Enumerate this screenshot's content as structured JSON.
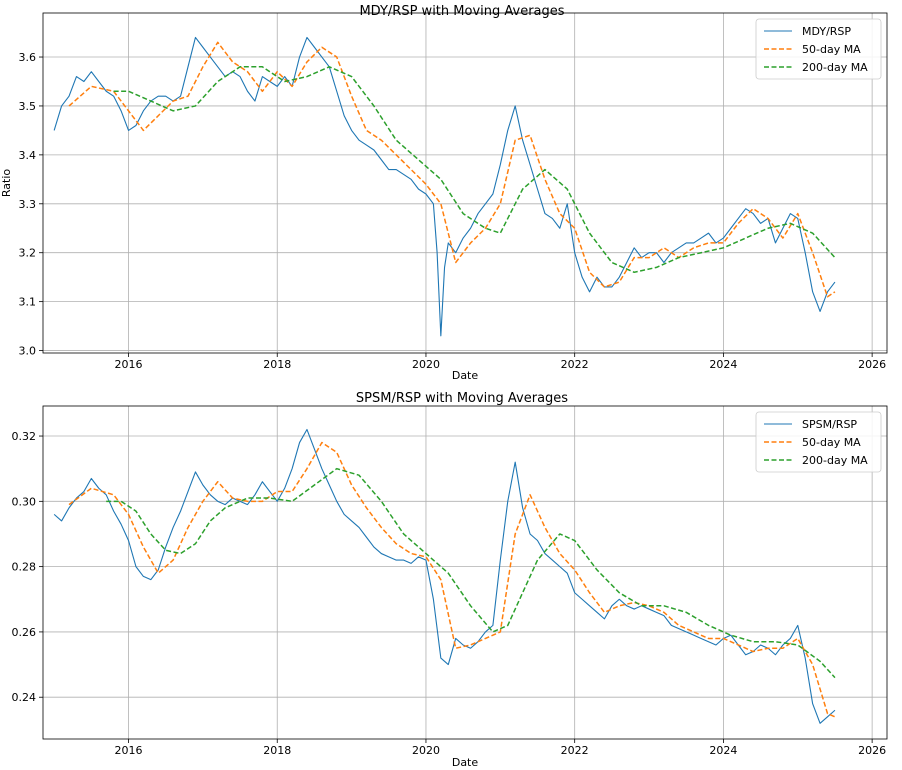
{
  "chart_data": [
    {
      "type": "line",
      "title": "MDY/RSP with Moving Averages",
      "xlabel": "Date",
      "ylabel": "Ratio",
      "xlim": [
        2014.85,
        2026.2
      ],
      "ylim": [
        2.995,
        3.69
      ],
      "x_ticks": [
        2016,
        2018,
        2020,
        2022,
        2024,
        2026
      ],
      "y_ticks": [
        3.0,
        3.1,
        3.2,
        3.3,
        3.4,
        3.5,
        3.6
      ],
      "y_tick_labels": [
        "3.0",
        "3.1",
        "3.2",
        "3.3",
        "3.4",
        "3.5",
        "3.6"
      ],
      "grid": true,
      "legend_position": "top-right",
      "series": [
        {
          "name": "MDY/RSP",
          "style": "solid",
          "color": "#1f77b4",
          "x": [
            2015.0,
            2015.1,
            2015.2,
            2015.3,
            2015.4,
            2015.5,
            2015.6,
            2015.7,
            2015.8,
            2015.9,
            2016.0,
            2016.1,
            2016.2,
            2016.3,
            2016.4,
            2016.5,
            2016.6,
            2016.7,
            2016.8,
            2016.9,
            2017.0,
            2017.1,
            2017.2,
            2017.3,
            2017.4,
            2017.5,
            2017.6,
            2017.7,
            2017.8,
            2017.9,
            2018.0,
            2018.1,
            2018.2,
            2018.3,
            2018.4,
            2018.5,
            2018.6,
            2018.7,
            2018.8,
            2018.9,
            2019.0,
            2019.1,
            2019.2,
            2019.3,
            2019.4,
            2019.5,
            2019.6,
            2019.7,
            2019.8,
            2019.9,
            2020.0,
            2020.1,
            2020.15,
            2020.2,
            2020.25,
            2020.3,
            2020.4,
            2020.5,
            2020.6,
            2020.7,
            2020.8,
            2020.9,
            2021.0,
            2021.1,
            2021.2,
            2021.3,
            2021.4,
            2021.5,
            2021.6,
            2021.7,
            2021.8,
            2021.9,
            2022.0,
            2022.1,
            2022.2,
            2022.3,
            2022.4,
            2022.5,
            2022.6,
            2022.7,
            2022.8,
            2022.9,
            2023.0,
            2023.1,
            2023.2,
            2023.3,
            2023.4,
            2023.5,
            2023.6,
            2023.7,
            2023.8,
            2023.9,
            2024.0,
            2024.1,
            2024.2,
            2024.3,
            2024.4,
            2024.5,
            2024.6,
            2024.7,
            2024.8,
            2024.9,
            2025.0,
            2025.1,
            2025.2,
            2025.3,
            2025.4,
            2025.5
          ],
          "y": [
            3.45,
            3.5,
            3.52,
            3.56,
            3.55,
            3.57,
            3.55,
            3.53,
            3.52,
            3.49,
            3.45,
            3.46,
            3.49,
            3.51,
            3.52,
            3.52,
            3.51,
            3.52,
            3.58,
            3.64,
            3.62,
            3.6,
            3.58,
            3.56,
            3.57,
            3.56,
            3.53,
            3.51,
            3.56,
            3.55,
            3.54,
            3.56,
            3.54,
            3.6,
            3.64,
            3.62,
            3.6,
            3.58,
            3.53,
            3.48,
            3.45,
            3.43,
            3.42,
            3.41,
            3.39,
            3.37,
            3.37,
            3.36,
            3.35,
            3.33,
            3.32,
            3.3,
            3.2,
            3.03,
            3.17,
            3.22,
            3.2,
            3.23,
            3.25,
            3.28,
            3.3,
            3.32,
            3.38,
            3.45,
            3.5,
            3.43,
            3.38,
            3.33,
            3.28,
            3.27,
            3.25,
            3.3,
            3.2,
            3.15,
            3.12,
            3.15,
            3.13,
            3.13,
            3.15,
            3.18,
            3.21,
            3.19,
            3.2,
            3.2,
            3.18,
            3.2,
            3.21,
            3.22,
            3.22,
            3.23,
            3.24,
            3.22,
            3.23,
            3.25,
            3.27,
            3.29,
            3.28,
            3.26,
            3.27,
            3.22,
            3.25,
            3.28,
            3.27,
            3.2,
            3.12,
            3.08,
            3.12,
            3.14
          ]
        },
        {
          "name": "50-day MA",
          "style": "dashed",
          "color": "#ff7f0e",
          "x": [
            2015.2,
            2015.5,
            2015.8,
            2016.0,
            2016.2,
            2016.4,
            2016.6,
            2016.8,
            2017.0,
            2017.2,
            2017.4,
            2017.6,
            2017.8,
            2018.0,
            2018.2,
            2018.4,
            2018.6,
            2018.8,
            2019.0,
            2019.2,
            2019.4,
            2019.6,
            2019.8,
            2020.0,
            2020.2,
            2020.4,
            2020.6,
            2020.8,
            2021.0,
            2021.2,
            2021.4,
            2021.6,
            2021.8,
            2022.0,
            2022.2,
            2022.4,
            2022.6,
            2022.8,
            2023.0,
            2023.2,
            2023.4,
            2023.6,
            2023.8,
            2024.0,
            2024.2,
            2024.4,
            2024.6,
            2024.8,
            2025.0,
            2025.2,
            2025.4,
            2025.5
          ],
          "y": [
            3.5,
            3.54,
            3.53,
            3.49,
            3.45,
            3.48,
            3.51,
            3.52,
            3.58,
            3.63,
            3.59,
            3.57,
            3.53,
            3.57,
            3.54,
            3.59,
            3.62,
            3.6,
            3.52,
            3.45,
            3.43,
            3.4,
            3.37,
            3.34,
            3.3,
            3.18,
            3.22,
            3.25,
            3.3,
            3.43,
            3.44,
            3.35,
            3.28,
            3.25,
            3.16,
            3.13,
            3.14,
            3.19,
            3.19,
            3.21,
            3.19,
            3.21,
            3.22,
            3.22,
            3.26,
            3.29,
            3.27,
            3.23,
            3.28,
            3.2,
            3.11,
            3.12
          ]
        },
        {
          "name": "200-day MA",
          "style": "dashed",
          "color": "#2ca02c",
          "x": [
            2015.8,
            2016.0,
            2016.3,
            2016.6,
            2016.9,
            2017.2,
            2017.5,
            2017.8,
            2018.1,
            2018.4,
            2018.7,
            2019.0,
            2019.3,
            2019.6,
            2019.9,
            2020.2,
            2020.5,
            2020.8,
            2021.0,
            2021.3,
            2021.6,
            2021.9,
            2022.2,
            2022.5,
            2022.8,
            2023.1,
            2023.4,
            2023.7,
            2024.0,
            2024.3,
            2024.6,
            2024.9,
            2025.2,
            2025.5
          ],
          "y": [
            3.53,
            3.53,
            3.51,
            3.49,
            3.5,
            3.55,
            3.58,
            3.58,
            3.55,
            3.56,
            3.58,
            3.56,
            3.5,
            3.43,
            3.39,
            3.35,
            3.28,
            3.25,
            3.24,
            3.33,
            3.37,
            3.33,
            3.24,
            3.18,
            3.16,
            3.17,
            3.19,
            3.2,
            3.21,
            3.23,
            3.25,
            3.26,
            3.24,
            3.19
          ]
        }
      ]
    },
    {
      "type": "line",
      "title": "SPSM/RSP with Moving Averages",
      "xlabel": "Date",
      "ylabel": "Ratio",
      "xlim": [
        2014.85,
        2026.2
      ],
      "ylim": [
        0.2272,
        0.3292
      ],
      "x_ticks": [
        2016,
        2018,
        2020,
        2022,
        2024,
        2026
      ],
      "y_ticks": [
        0.24,
        0.26,
        0.28,
        0.3,
        0.32
      ],
      "y_tick_labels": [
        "0.24",
        "0.26",
        "0.28",
        "0.30",
        "0.32"
      ],
      "grid": true,
      "legend_position": "top-right",
      "series": [
        {
          "name": "SPSM/RSP",
          "style": "solid",
          "color": "#1f77b4",
          "x": [
            2015.0,
            2015.1,
            2015.2,
            2015.3,
            2015.4,
            2015.5,
            2015.6,
            2015.7,
            2015.8,
            2015.9,
            2016.0,
            2016.1,
            2016.2,
            2016.3,
            2016.4,
            2016.5,
            2016.6,
            2016.7,
            2016.8,
            2016.9,
            2017.0,
            2017.1,
            2017.2,
            2017.3,
            2017.4,
            2017.5,
            2017.6,
            2017.7,
            2017.8,
            2017.9,
            2018.0,
            2018.1,
            2018.2,
            2018.3,
            2018.4,
            2018.5,
            2018.6,
            2018.7,
            2018.8,
            2018.9,
            2019.0,
            2019.1,
            2019.2,
            2019.3,
            2019.4,
            2019.5,
            2019.6,
            2019.7,
            2019.8,
            2019.9,
            2020.0,
            2020.1,
            2020.2,
            2020.3,
            2020.4,
            2020.5,
            2020.6,
            2020.7,
            2020.8,
            2020.9,
            2021.0,
            2021.1,
            2021.2,
            2021.3,
            2021.4,
            2021.5,
            2021.6,
            2021.7,
            2021.8,
            2021.9,
            2022.0,
            2022.1,
            2022.2,
            2022.3,
            2022.4,
            2022.5,
            2022.6,
            2022.7,
            2022.8,
            2022.9,
            2023.0,
            2023.1,
            2023.2,
            2023.3,
            2023.4,
            2023.5,
            2023.6,
            2023.7,
            2023.8,
            2023.9,
            2024.0,
            2024.1,
            2024.2,
            2024.3,
            2024.4,
            2024.5,
            2024.6,
            2024.7,
            2024.8,
            2024.9,
            2025.0,
            2025.1,
            2025.2,
            2025.3,
            2025.4,
            2025.5
          ],
          "y": [
            0.296,
            0.294,
            0.298,
            0.301,
            0.303,
            0.307,
            0.304,
            0.302,
            0.297,
            0.293,
            0.288,
            0.28,
            0.277,
            0.276,
            0.279,
            0.286,
            0.292,
            0.297,
            0.303,
            0.309,
            0.305,
            0.302,
            0.3,
            0.299,
            0.301,
            0.3,
            0.299,
            0.302,
            0.306,
            0.303,
            0.3,
            0.304,
            0.31,
            0.318,
            0.322,
            0.316,
            0.31,
            0.305,
            0.3,
            0.296,
            0.294,
            0.292,
            0.289,
            0.286,
            0.284,
            0.283,
            0.282,
            0.282,
            0.281,
            0.283,
            0.282,
            0.27,
            0.252,
            0.25,
            0.258,
            0.256,
            0.255,
            0.257,
            0.26,
            0.262,
            0.282,
            0.3,
            0.312,
            0.298,
            0.29,
            0.288,
            0.284,
            0.282,
            0.28,
            0.278,
            0.272,
            0.27,
            0.268,
            0.266,
            0.264,
            0.268,
            0.27,
            0.268,
            0.267,
            0.268,
            0.267,
            0.266,
            0.265,
            0.262,
            0.261,
            0.26,
            0.259,
            0.258,
            0.257,
            0.256,
            0.258,
            0.259,
            0.256,
            0.253,
            0.254,
            0.256,
            0.255,
            0.253,
            0.256,
            0.258,
            0.262,
            0.252,
            0.238,
            0.232,
            0.234,
            0.236
          ]
        },
        {
          "name": "50-day MA",
          "style": "dashed",
          "color": "#ff7f0e",
          "x": [
            2015.2,
            2015.5,
            2015.8,
            2016.0,
            2016.2,
            2016.4,
            2016.6,
            2016.8,
            2017.0,
            2017.2,
            2017.4,
            2017.6,
            2017.8,
            2018.0,
            2018.2,
            2018.4,
            2018.6,
            2018.8,
            2019.0,
            2019.2,
            2019.4,
            2019.6,
            2019.8,
            2020.0,
            2020.2,
            2020.4,
            2020.6,
            2020.8,
            2021.0,
            2021.2,
            2021.4,
            2021.6,
            2021.8,
            2022.0,
            2022.2,
            2022.4,
            2022.6,
            2022.8,
            2023.0,
            2023.2,
            2023.4,
            2023.6,
            2023.8,
            2024.0,
            2024.2,
            2024.4,
            2024.6,
            2024.8,
            2025.0,
            2025.2,
            2025.4,
            2025.5
          ],
          "y": [
            0.299,
            0.304,
            0.302,
            0.296,
            0.286,
            0.278,
            0.282,
            0.292,
            0.3,
            0.306,
            0.301,
            0.3,
            0.3,
            0.303,
            0.303,
            0.31,
            0.318,
            0.315,
            0.305,
            0.298,
            0.292,
            0.287,
            0.284,
            0.283,
            0.276,
            0.255,
            0.256,
            0.258,
            0.26,
            0.29,
            0.302,
            0.292,
            0.284,
            0.279,
            0.272,
            0.266,
            0.268,
            0.269,
            0.268,
            0.266,
            0.262,
            0.26,
            0.258,
            0.258,
            0.256,
            0.254,
            0.255,
            0.255,
            0.258,
            0.25,
            0.235,
            0.234
          ]
        },
        {
          "name": "200-day MA",
          "style": "dashed",
          "color": "#2ca02c",
          "x": [
            2015.7,
            2015.9,
            2016.1,
            2016.3,
            2016.5,
            2016.7,
            2016.9,
            2017.1,
            2017.3,
            2017.6,
            2017.9,
            2018.2,
            2018.5,
            2018.8,
            2019.1,
            2019.4,
            2019.7,
            2020.0,
            2020.3,
            2020.6,
            2020.9,
            2021.1,
            2021.3,
            2021.5,
            2021.8,
            2022.0,
            2022.3,
            2022.6,
            2022.9,
            2023.2,
            2023.5,
            2023.8,
            2024.1,
            2024.4,
            2024.7,
            2025.0,
            2025.3,
            2025.5
          ],
          "y": [
            0.3,
            0.3,
            0.297,
            0.29,
            0.285,
            0.284,
            0.287,
            0.294,
            0.298,
            0.301,
            0.301,
            0.3,
            0.305,
            0.31,
            0.308,
            0.3,
            0.29,
            0.284,
            0.278,
            0.268,
            0.26,
            0.262,
            0.272,
            0.282,
            0.29,
            0.288,
            0.279,
            0.272,
            0.268,
            0.268,
            0.266,
            0.262,
            0.259,
            0.257,
            0.257,
            0.256,
            0.251,
            0.246
          ]
        }
      ]
    }
  ]
}
